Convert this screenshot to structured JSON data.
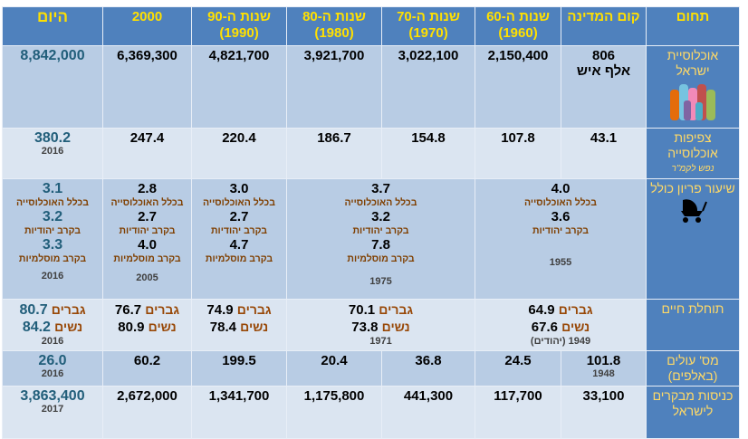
{
  "columns": [
    {
      "name": "תחום"
    },
    {
      "name": "קום המדינה"
    },
    {
      "name": "שנות ה-60",
      "year": "(1960)"
    },
    {
      "name": "שנות ה-70",
      "year": "(1970)"
    },
    {
      "name": "שנות ה-80",
      "year": "(1980)"
    },
    {
      "name": "שנות ה-90",
      "year": "(1990)"
    },
    {
      "name": "2000"
    },
    {
      "name": "היום"
    }
  ],
  "rows": [
    {
      "label": "אוכלוסיית ישראל",
      "cells": [
        {
          "value": "806",
          "note": "אלף איש"
        },
        {
          "value": "2,150,400"
        },
        {
          "value": "3,022,100"
        },
        {
          "value": "3,921,700"
        },
        {
          "value": "4,821,700"
        },
        {
          "value": "6,369,300"
        },
        {
          "value": "8,842,000"
        }
      ]
    },
    {
      "label": "צפיפות אוכלוסייה",
      "unit": "נפש לקמ\"ר",
      "cells": [
        {
          "value": "43.1"
        },
        {
          "value": "107.8"
        },
        {
          "value": "154.8"
        },
        {
          "value": "186.7"
        },
        {
          "value": "220.4"
        },
        {
          "value": "247.4"
        },
        {
          "value": "380.2",
          "year": "2016"
        }
      ]
    },
    {
      "label": "שיעור פריון כולל",
      "cells": [
        {
          "total": "4.0",
          "total_label": "בכלל האוכלוסייה",
          "jewish": "3.6",
          "jewish_label": "בקרב יהודיות",
          "year": "1955"
        },
        {
          "total": "3.7",
          "total_label": "בכלל האוכלוסייה",
          "jewish": "3.2",
          "jewish_label": "בקרב יהודיות",
          "muslim": "7.8",
          "muslim_label": "בקרב מוסלמיות",
          "year": "1975"
        },
        {
          "total": "3.0",
          "total_label": "בכלל האוכלוסייה",
          "jewish": "2.7",
          "jewish_label": "בקרב יהודיות",
          "muslim": "4.7",
          "muslim_label": "בקרב מוסלמיות"
        },
        {
          "total": "2.8",
          "total_label": "בכלל האוכלוסייה",
          "jewish": "2.7",
          "jewish_label": "בקרב יהודיות",
          "muslim": "4.0",
          "muslim_label": "בקרב מוסלמיות",
          "year": "2005"
        },
        {
          "total": "3.1",
          "total_label": "בכלל האוכלוסייה",
          "jewish": "3.2",
          "jewish_label": "בקרב יהודיות",
          "muslim": "3.3",
          "muslim_label": "בקרב מוסלמיות",
          "year": "2016"
        }
      ]
    },
    {
      "label": "תוחלת חיים",
      "cells": [
        {
          "men_label": "גברים",
          "men": "64.9",
          "women_label": "נשים",
          "women": "67.6",
          "year": "1949 (יהודים)"
        },
        {
          "men_label": "גברים",
          "men": "70.1",
          "women_label": "נשים",
          "women": "73.8",
          "year": "1971"
        },
        {
          "men_label": "גברים",
          "men": "74.9",
          "women_label": "נשים",
          "women": "78.4"
        },
        {
          "men_label": "גברים",
          "men": "76.7",
          "women_label": "נשים",
          "women": "80.9"
        },
        {
          "men_label": "גברים",
          "men": "80.7",
          "women_label": "נשים",
          "women": "84.2",
          "year": "2016"
        }
      ]
    },
    {
      "label": "מס' עולים (באלפים)",
      "cells": [
        {
          "value": "101.8",
          "year": "1948"
        },
        {
          "value": "24.5"
        },
        {
          "value": "36.8"
        },
        {
          "value": "20.4"
        },
        {
          "value": "199.5"
        },
        {
          "value": "60.2"
        },
        {
          "value": "26.0",
          "year": "2016"
        }
      ]
    },
    {
      "label": "כניסות מבקרים לישראל",
      "cells": [
        {
          "value": "33,100"
        },
        {
          "value": "117,700"
        },
        {
          "value": "441,300"
        },
        {
          "value": "1,175,800"
        },
        {
          "value": "1,341,700"
        },
        {
          "value": "2,672,000"
        },
        {
          "value": "3,863,400",
          "year": "2017"
        }
      ]
    }
  ]
}
